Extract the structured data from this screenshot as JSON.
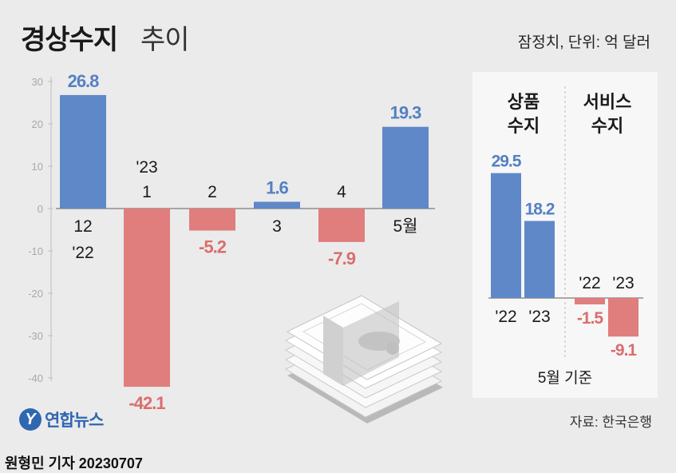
{
  "title": "경상수지",
  "title_suffix": "추이",
  "unit_note": "잠정치, 단위: 억 달러",
  "source": "자료: 한국은행",
  "logo_text": "연합뉴스",
  "logo_mark": "Y",
  "credit": "원형민 기자  20230707",
  "colors": {
    "positive": "#5f88c9",
    "negative": "#e07d7d",
    "positive_label": "#5480c4",
    "negative_label": "#db6d6d"
  },
  "chart_data": [
    {
      "type": "bar",
      "title": "경상수지 추이",
      "y_ticks": [
        30,
        20,
        10,
        0,
        -10,
        -20,
        -30,
        -40
      ],
      "ylim": [
        -45,
        32
      ],
      "grid": false,
      "bars": [
        {
          "label": "12",
          "sublabel": "'22",
          "value": 26.8,
          "value_label": "26.8"
        },
        {
          "label": "1",
          "sublabel": "'23",
          "value": -42.1,
          "value_label": "-42.1"
        },
        {
          "label": "2",
          "sublabel": "",
          "value": -5.2,
          "value_label": "-5.2"
        },
        {
          "label": "3",
          "sublabel": "",
          "value": 1.6,
          "value_label": "1.6"
        },
        {
          "label": "4",
          "sublabel": "",
          "value": -7.9,
          "value_label": "-7.9"
        },
        {
          "label": "5월",
          "sublabel": "",
          "value": 19.3,
          "value_label": "19.3"
        }
      ]
    },
    {
      "type": "bar",
      "title": "5월 기준",
      "groups": [
        {
          "name": "상품 수지",
          "name_lines": [
            "상품",
            "수지"
          ],
          "bars": [
            {
              "label": "'22",
              "value": 29.5,
              "value_label": "29.5"
            },
            {
              "label": "'23",
              "value": 18.2,
              "value_label": "18.2"
            }
          ]
        },
        {
          "name": "서비스 수지",
          "name_lines": [
            "서비스",
            "수지"
          ],
          "bars": [
            {
              "label": "'22",
              "value": -1.5,
              "value_label": "-1.5"
            },
            {
              "label": "'23",
              "value": -9.1,
              "value_label": "-9.1"
            }
          ]
        }
      ]
    }
  ]
}
